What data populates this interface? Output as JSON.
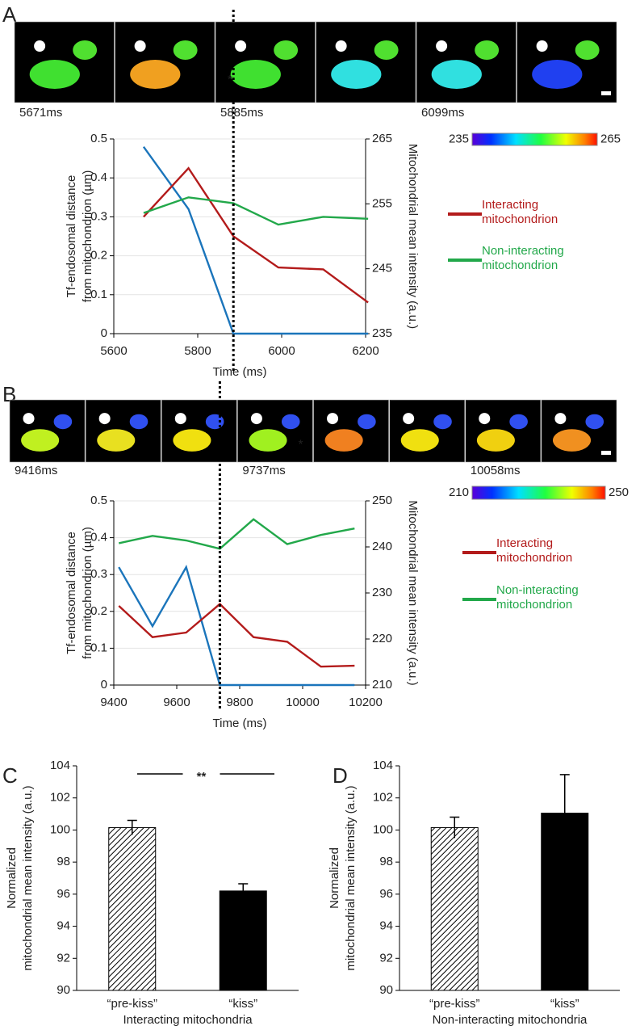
{
  "chart_data": [
    {
      "type": "line",
      "panel": "A",
      "frame_labels": [
        "5671ms",
        null,
        "5885ms",
        null,
        "6099ms",
        null
      ],
      "asterisk": "*",
      "colorbar_range": [
        235,
        265
      ],
      "xlabel": "Time (ms)",
      "ylabel": [
        "Tf-endosomal distance",
        "from mitochondrion (µm)"
      ],
      "y2label": "Mitochondrial mean intensity (a.u.)",
      "x": [
        5671,
        5778,
        5885,
        5992,
        6099,
        6206
      ],
      "xlim": [
        5600,
        6200
      ],
      "xticks": [
        5600,
        5800,
        6000,
        6200
      ],
      "ylim": [
        0,
        0.5
      ],
      "yticks": [
        0,
        0.1,
        0.2,
        0.3,
        0.4,
        0.5
      ],
      "y2lim": [
        235,
        265
      ],
      "y2ticks": [
        235,
        245,
        255,
        265
      ],
      "grid": true,
      "vline": 5885,
      "series": [
        {
          "color": "#1b75bb",
          "values": [
            0.48,
            0.32,
            0,
            0,
            0,
            0
          ]
        },
        {
          "name": "Interacting mitochondrion",
          "color": "#b31b1b",
          "axis": "y2",
          "values": [
            253,
            260.5,
            250,
            245.2,
            244.9,
            239.8
          ]
        },
        {
          "name": "Non-interacting mitochondrion",
          "color": "#22a84a",
          "axis": "y2",
          "values": [
            253.6,
            256,
            255.1,
            251.8,
            253,
            252.7
          ]
        }
      ]
    },
    {
      "type": "line",
      "panel": "B",
      "frame_labels": [
        "9416ms",
        null,
        null,
        "9737ms",
        null,
        null,
        "10058ms",
        null
      ],
      "asterisk": "*",
      "colorbar_range": [
        210,
        250
      ],
      "xlabel": "Time (ms)",
      "ylabel": [
        "Tf-endosomal distance",
        "from mitochondrion (µm)"
      ],
      "y2label": "Mitochondrial mean intensity (a.u.)",
      "x": [
        9416,
        9523,
        9630,
        9737,
        9844,
        9951,
        10058,
        10165
      ],
      "xlim": [
        9400,
        10200
      ],
      "xticks": [
        9400,
        9600,
        9800,
        10000,
        10200
      ],
      "ylim": [
        0,
        0.5
      ],
      "yticks": [
        0,
        0.1,
        0.2,
        0.3,
        0.4,
        0.5
      ],
      "y2lim": [
        210,
        250
      ],
      "y2ticks": [
        210,
        220,
        230,
        240,
        250
      ],
      "grid": true,
      "vline": 9737,
      "series": [
        {
          "color": "#1b75bb",
          "values": [
            0.32,
            0.16,
            0.32,
            0,
            0,
            0,
            0,
            0
          ]
        },
        {
          "name": "Interacting mitochondrion",
          "color": "#b31b1b",
          "axis": "y2",
          "values": [
            227.2,
            220.4,
            221.4,
            227.6,
            220.4,
            219.4,
            214,
            214.2
          ]
        },
        {
          "name": "Non-interacting mitochondrion",
          "color": "#22a84a",
          "axis": "y2",
          "values": [
            240.8,
            242.4,
            241.4,
            239.6,
            246,
            240.6,
            242.6,
            244
          ]
        }
      ]
    },
    {
      "type": "bar",
      "panel": "C",
      "ylabel": [
        "Normalized",
        "mitochondrial mean intensity (a.u.)"
      ],
      "xlabel": "Interacting mitochondria",
      "categories": [
        "“pre-kiss”",
        "“kiss”"
      ],
      "values": [
        100.15,
        96.2
      ],
      "errors": [
        0.45,
        0.45
      ],
      "fills": [
        "hatch",
        "#000000"
      ],
      "significance": "**",
      "ylim": [
        90,
        104
      ],
      "yticks": [
        90,
        92,
        94,
        96,
        98,
        100,
        102,
        104
      ]
    },
    {
      "type": "bar",
      "panel": "D",
      "ylabel": [
        "Normalized",
        "mitochondrial mean intensity (a.u.)"
      ],
      "xlabel": "Non-interacting mitochondria",
      "categories": [
        "“pre-kiss”",
        "“kiss”"
      ],
      "values": [
        100.15,
        101.05
      ],
      "errors": [
        0.65,
        2.4
      ],
      "fills": [
        "hatch",
        "#000000"
      ],
      "ylim": [
        90,
        104
      ],
      "yticks": [
        90,
        92,
        94,
        96,
        98,
        100,
        102,
        104
      ]
    }
  ]
}
